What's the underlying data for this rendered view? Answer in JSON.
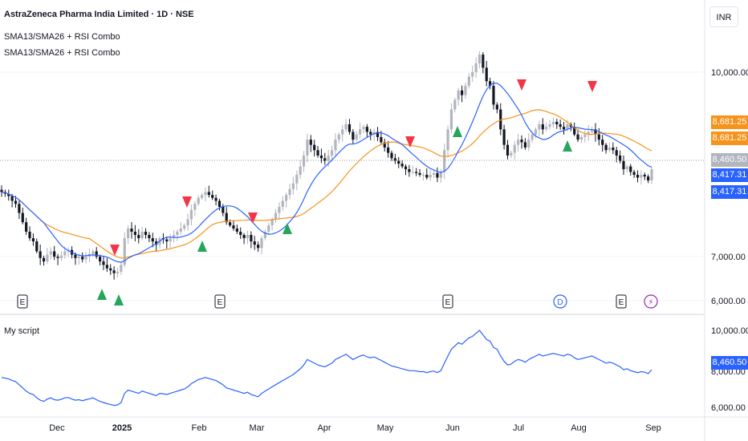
{
  "header": {
    "title": "AstraZeneca Pharma India Limited · 1D · NSE",
    "indicator_1": "SMA13/SMA26 + RSI Combo",
    "indicator_2": "SMA13/SMA26 + RSI Combo",
    "currency_button": "INR"
  },
  "pane2": {
    "label": "My script"
  },
  "price_axis": {
    "ticks": [
      "10,000.00",
      "7,000.00",
      "6,000.00"
    ],
    "pane2_ticks": [
      "10,000.00",
      "6,000.00"
    ],
    "pane2_partial": "8,000.00"
  },
  "price_tags": [
    {
      "text": "8,681.25",
      "color": "#f7931a"
    },
    {
      "text": "8,681.25",
      "color": "#f7931a"
    },
    {
      "text": "8,460.50",
      "color": "#b2b5be"
    },
    {
      "text": "8,417.31",
      "color": "#2962ff"
    },
    {
      "text": "8,417.31",
      "color": "#2962ff"
    }
  ],
  "pane2_tag": {
    "text": "8,460.50",
    "color": "#2962ff"
  },
  "time_axis": {
    "labels": [
      "Dec",
      "2025",
      "Feb",
      "Mar",
      "Apr",
      "May",
      "Jun",
      "Jul",
      "Aug",
      "Sep"
    ]
  },
  "events": [
    "E",
    "E",
    "E",
    "D",
    "E",
    "⚡"
  ],
  "chart_data": {
    "type": "candlestick",
    "symbol": "AstraZeneca Pharma India Limited",
    "interval": "1D",
    "exchange": "NSE",
    "ylim": [
      5900,
      10900
    ],
    "log_scale": true,
    "series": [
      {
        "name": "SMA13",
        "color": "#2962ff"
      },
      {
        "name": "SMA26",
        "color": "#f7931a"
      }
    ],
    "closes": [
      7650,
      7620,
      7580,
      7500,
      7450,
      7300,
      7150,
      7000,
      6900,
      6850,
      6700,
      6600,
      6550,
      6650,
      6700,
      6620,
      6600,
      6640,
      6700,
      6720,
      6650,
      6600,
      6620,
      6580,
      6620,
      6660,
      6700,
      6620,
      6550,
      6500,
      6450,
      6420,
      6380,
      6400,
      6500,
      6900,
      7050,
      7000,
      6950,
      6900,
      7000,
      6950,
      6900,
      6850,
      6800,
      6900,
      6880,
      6850,
      6900,
      6950,
      7000,
      7050,
      7100,
      7200,
      7350,
      7450,
      7550,
      7600,
      7650,
      7600,
      7550,
      7500,
      7400,
      7300,
      7150,
      7100,
      7050,
      7000,
      6950,
      6900,
      6950,
      6850,
      6800,
      6750,
      6900,
      7000,
      7100,
      7200,
      7300,
      7400,
      7500,
      7600,
      7700,
      7800,
      7950,
      8100,
      8300,
      8600,
      8500,
      8400,
      8300,
      8250,
      8200,
      8300,
      8400,
      8600,
      8700,
      8800,
      8900,
      8750,
      8600,
      8700,
      8800,
      8850,
      8750,
      8700,
      8750,
      8650,
      8550,
      8450,
      8350,
      8250,
      8200,
      8150,
      8100,
      8050,
      8000,
      8000,
      7980,
      7950,
      7950,
      7900,
      7950,
      7980,
      7900,
      8000,
      8400,
      8800,
      9200,
      9400,
      9600,
      9500,
      9700,
      9900,
      10000,
      10200,
      10400,
      10100,
      9800,
      9700,
      9300,
      9200,
      8800,
      8500,
      8300,
      8350,
      8500,
      8600,
      8550,
      8450,
      8600,
      8700,
      8800,
      8900,
      8800,
      8850,
      8900,
      8950,
      8900,
      8850,
      8800,
      8900,
      8850,
      8700,
      8600,
      8650,
      8700,
      8750,
      8800,
      8700,
      8600,
      8500,
      8400,
      8450,
      8400,
      8300,
      8200,
      8050,
      8100,
      8000,
      7950,
      7900,
      7950,
      7920,
      7850,
      8050
    ],
    "labels": [
      "Dec",
      "2025",
      "Feb",
      "Mar",
      "Apr",
      "May",
      "Jun",
      "Jul",
      "Aug",
      "Sep"
    ],
    "y_ticks": [
      10000,
      7000,
      6000
    ],
    "buy_signals": 7,
    "sell_signals": 6
  }
}
